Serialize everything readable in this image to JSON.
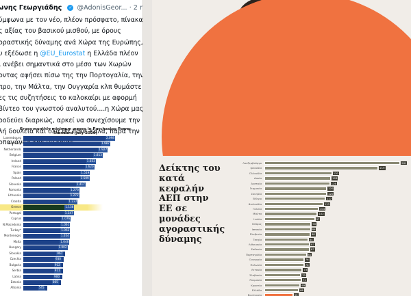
{
  "tweet": {
    "author_name": "ωνης Γεωργιάδης",
    "handle": "@AdonisGeor...",
    "time": "2 η",
    "lines": [
      "ύμφωνα με τον νέο, πλέον πρόσφατο, πίνακα",
      "ς αξίας του βασικού μισθού, με όρους",
      "οραστικής δύναμης ανά Χώρα της Ευρώπης,",
      "ι ανέβει σημαντικά στο μέσο των Χωρών",
      "οντας αφήσει πίσω της την Πορτογαλία, την",
      "προ, την Μάλτα, την Ουγγαρία κλπ θυμάστε",
      "ες τις συζητήσεις το καλοκαίρι με αφορμή",
      "βίντεο του γνωστού αναλυτού....η Χώρα μας",
      "οοδεύει διαρκώς, αρκεί να συνεχίσουμε την",
      "λή δουλειά και όλα θα πάνε καλά, παρά την",
      "οπαγάνδα της μιζέριας."
    ],
    "line4_prefix": "υ εξέδωσε η ",
    "mention": "@EU_Eurostat",
    "line4_suffix": " η Ελλάδα πλέον"
  },
  "colors": {
    "left_bar": "#1d4289",
    "left_value_bg": "#2a569e",
    "highlight": "#f6e05e",
    "right_bar": "#8b8a74",
    "right_bar_highlight": "#f07240",
    "orange_circle": "#f07240",
    "mention": "#1d9bf0"
  },
  "chart_data": [
    {
      "type": "bar",
      "orientation": "horizontal",
      "title": "Gross monthly minimum wages in Purchasing Power Standard (July 2020)",
      "categories": [
        "Luxembourg",
        "Germany",
        "Netherlands",
        "Belgium",
        "Ireland",
        "France",
        "Spain",
        "Poland",
        "Slovenia",
        "Romania",
        "Lithuania",
        "Croatia",
        "Greece",
        "Portugal",
        "Cyprus",
        "N.Macedonia",
        "Turkey*",
        "Montenegro",
        "Malta",
        "Hungary",
        "Slovakia",
        "Czechia",
        "Bulgaria",
        "Serbia",
        "Latvia",
        "Estonia",
        "Albania"
      ],
      "values": [
        2098,
        1987,
        1927,
        1813,
        1653,
        1620,
        1519,
        1509,
        1417,
        1276,
        1272,
        1237,
        1158,
        1147,
        1076,
        1061,
        1062,
        1054,
        1046,
        1002,
        967,
        930,
        912,
        911,
        900,
        865,
        545
      ],
      "value_labels": [
        "2.098",
        "1.987",
        "1.927",
        "1.813",
        "1.653",
        "1.620",
        "1.519",
        "1.509",
        "1.417",
        "1.276",
        "1.272",
        "1.237",
        "1.158",
        "1.147",
        "1.076",
        "1.061",
        "1.062",
        "1.054",
        "1.046",
        "1.002",
        "967",
        "930",
        "912",
        "911",
        "900",
        "865",
        "545"
      ],
      "highlighted": "Greece",
      "xlim": [
        0,
        2300
      ]
    },
    {
      "type": "bar",
      "orientation": "horizontal",
      "title": "Δείκτης του κατά κεφαλήν ΑΕΠ στην ΕΕ σε μονάδες αγοραστικής δύναμης",
      "categories": [
        "Λουξεμβούργο",
        "Ιρλανδία",
        "Ολλανδία",
        "Δανία",
        "Αυστρία",
        "Γερμανία",
        "Σουηδία",
        "Βέλγιο",
        "Φινλανδία",
        "Γαλλία",
        "Μάλτα",
        "Ιταλία",
        "Κύπρος",
        "Ισπανία",
        "Σλοβενία",
        "Τσεχία",
        "Λιθουανία",
        "Εσθονία",
        "Πορτογαλία",
        "Ουγγαρία",
        "Πολωνία",
        "Λετονία",
        "Σλοβακία",
        "Ρουμανία",
        "Κροατία",
        "Ελλάδα",
        "Βουλγαρία"
      ],
      "values": [
        261,
        219,
        130,
        128,
        126,
        120,
        120,
        117,
        113,
        104,
        102,
        97,
        90,
        89,
        88,
        84,
        87,
        87,
        81,
        76,
        76,
        73,
        70,
        71,
        69,
        66,
        55
      ],
      "highlighted": "Βουλγαρία",
      "xlim": [
        0,
        270
      ]
    }
  ]
}
